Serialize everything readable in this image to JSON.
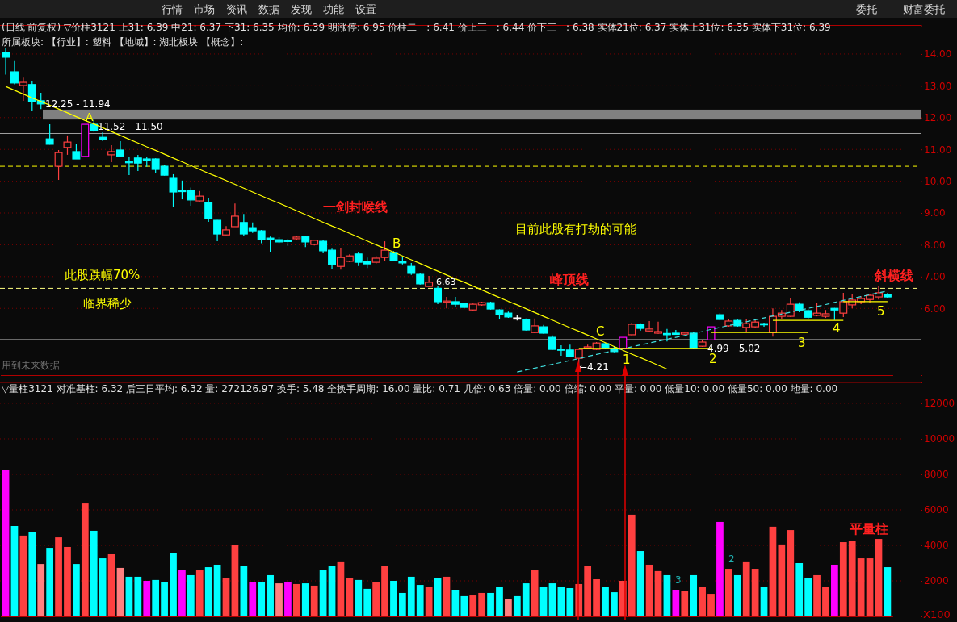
{
  "chart_data": [
    {
      "type": "other",
      "annotations": [
        "行情",
        "市场",
        "资讯",
        "数据",
        "发现",
        "功能",
        "设置",
        "委托",
        "财富委托"
      ]
    },
    {
      "type": "candlestick",
      "title": "(日线 前复权) ▽价柱3121  上31: 6.39  中21: 6.37  下31: 6.35    均价: 6.39  明涨停: 6.95  价柱二一: 6.41  价上三一: 6.44  价下三一: 6.38  实体21位: 6.37  实体上31位: 6.35  实体下31位: 6.39",
      "subtitle": "所属板块:    【行业】: 塑料  【地域】: 湖北板块    【概念】:",
      "categories": [
        null,
        null,
        null,
        null,
        null,
        null,
        null,
        null,
        null,
        null,
        null,
        null,
        null,
        null,
        null,
        null,
        null,
        null,
        null,
        null,
        null,
        null,
        null,
        null,
        null,
        null,
        null,
        null,
        null,
        null,
        null,
        null,
        null,
        null,
        null,
        null,
        null,
        null,
        null,
        null,
        null,
        null,
        null,
        null,
        null,
        null,
        null,
        null,
        null,
        null,
        null,
        null,
        null,
        null,
        null,
        null,
        null,
        null,
        null,
        null,
        null,
        null,
        null,
        null,
        null,
        null,
        null,
        null,
        null,
        null,
        null,
        null,
        null,
        null,
        null,
        null,
        null,
        null,
        null,
        null,
        null,
        null,
        null,
        null,
        null,
        null,
        null,
        null,
        null,
        null,
        null,
        null,
        null,
        null,
        null,
        null,
        null,
        null,
        null,
        null,
        null
      ],
      "ohlc": [
        [
          14.05,
          14.2,
          13.35,
          13.9
        ],
        [
          13.44,
          13.8,
          13.05,
          13.09
        ],
        [
          13.01,
          13.26,
          12.53,
          13.11
        ],
        [
          13.04,
          13.16,
          12.22,
          12.5
        ],
        [
          12.53,
          12.78,
          12.27,
          12.43
        ],
        [
          11.33,
          11.79,
          11.15,
          11.16
        ],
        [
          10.47,
          10.98,
          10.04,
          10.9
        ],
        [
          11.06,
          11.44,
          10.83,
          11.23
        ],
        [
          10.93,
          11.18,
          10.7,
          10.7
        ],
        [
          10.78,
          11.79,
          10.78,
          11.79
        ],
        [
          11.79,
          11.94,
          11.56,
          11.59
        ],
        [
          11.38,
          11.54,
          11.26,
          11.31
        ],
        [
          10.83,
          11.13,
          10.6,
          10.93
        ],
        [
          10.98,
          11.26,
          10.76,
          10.78
        ],
        [
          10.62,
          10.75,
          10.19,
          10.58
        ],
        [
          10.73,
          10.83,
          10.32,
          10.57
        ],
        [
          10.7,
          10.75,
          10.45,
          10.65
        ],
        [
          10.7,
          10.72,
          10.27,
          10.37
        ],
        [
          10.47,
          10.52,
          10.18,
          10.19
        ],
        [
          10.09,
          10.22,
          9.18,
          9.66
        ],
        [
          9.71,
          10.02,
          9.43,
          9.69
        ],
        [
          9.71,
          9.8,
          9.23,
          9.41
        ],
        [
          9.38,
          9.69,
          9.36,
          9.53
        ],
        [
          9.33,
          9.46,
          8.72,
          8.82
        ],
        [
          8.77,
          8.78,
          8.11,
          8.34
        ],
        [
          8.31,
          8.59,
          8.3,
          8.47
        ],
        [
          8.57,
          9.3,
          8.57,
          8.9
        ],
        [
          8.7,
          8.97,
          8.29,
          8.34
        ],
        [
          8.54,
          8.7,
          8.37,
          8.44
        ],
        [
          8.44,
          8.47,
          8.05,
          8.16
        ],
        [
          8.21,
          8.26,
          7.78,
          8.16
        ],
        [
          8.16,
          8.24,
          8.05,
          8.09
        ],
        [
          8.14,
          8.19,
          7.96,
          8.11
        ],
        [
          8.19,
          8.27,
          8.15,
          8.24
        ],
        [
          8.26,
          8.28,
          7.93,
          8.09
        ],
        [
          8.01,
          8.16,
          7.98,
          8.14
        ],
        [
          8.11,
          8.16,
          7.76,
          7.81
        ],
        [
          7.83,
          7.88,
          7.25,
          7.38
        ],
        [
          7.32,
          7.91,
          7.22,
          7.6
        ],
        [
          7.48,
          7.7,
          7.45,
          7.65
        ],
        [
          7.71,
          7.78,
          7.33,
          7.45
        ],
        [
          7.48,
          7.6,
          7.27,
          7.4
        ],
        [
          7.45,
          7.65,
          7.4,
          7.58
        ],
        [
          7.6,
          8.11,
          7.48,
          7.83
        ],
        [
          7.76,
          7.8,
          7.48,
          7.5
        ],
        [
          7.48,
          7.63,
          7.38,
          7.43
        ],
        [
          7.32,
          7.43,
          7.05,
          7.1
        ],
        [
          7.07,
          7.1,
          6.75,
          6.77
        ],
        [
          6.69,
          7.02,
          6.68,
          6.82
        ],
        [
          6.63,
          6.69,
          6.13,
          6.21
        ],
        [
          6.22,
          6.36,
          6.0,
          6.23
        ],
        [
          6.21,
          6.36,
          6.03,
          6.13
        ],
        [
          6.16,
          6.18,
          6.02,
          6.03
        ],
        [
          5.95,
          6.15,
          5.93,
          6.13
        ],
        [
          6.11,
          6.21,
          6.08,
          6.18
        ],
        [
          6.18,
          6.21,
          5.96,
          5.98
        ],
        [
          5.95,
          5.97,
          5.65,
          5.8
        ],
        [
          5.85,
          5.9,
          5.7,
          5.73
        ],
        [
          5.7,
          5.8,
          5.62,
          5.7
        ],
        [
          5.65,
          5.68,
          5.3,
          5.32
        ],
        [
          5.24,
          5.68,
          5.22,
          5.45
        ],
        [
          5.42,
          5.48,
          5.2,
          5.22
        ],
        [
          5.09,
          5.15,
          4.7,
          4.71
        ],
        [
          4.72,
          4.84,
          4.51,
          4.71
        ],
        [
          4.69,
          4.86,
          4.47,
          4.48
        ],
        [
          4.43,
          4.73,
          4.21,
          4.71
        ],
        [
          4.76,
          4.86,
          4.72,
          4.79
        ],
        [
          4.71,
          4.94,
          4.69,
          4.91
        ],
        [
          4.89,
          4.91,
          4.74,
          4.76
        ],
        [
          4.74,
          4.81,
          4.62,
          4.64
        ],
        [
          4.74,
          5.09,
          4.74,
          5.09
        ],
        [
          5.17,
          5.55,
          5.15,
          5.5
        ],
        [
          5.5,
          5.53,
          5.3,
          5.37
        ],
        [
          5.29,
          5.6,
          5.27,
          5.35
        ],
        [
          5.22,
          5.58,
          5.2,
          5.27
        ],
        [
          5.21,
          5.35,
          4.96,
          5.2
        ],
        [
          5.22,
          5.32,
          5.17,
          5.22
        ],
        [
          5.19,
          5.27,
          5.17,
          5.24
        ],
        [
          5.22,
          5.27,
          4.74,
          4.76
        ],
        [
          4.81,
          4.99,
          4.79,
          4.94
        ],
        [
          5.01,
          5.42,
          5.01,
          5.42
        ],
        [
          5.8,
          5.85,
          5.62,
          5.65
        ],
        [
          5.45,
          5.65,
          5.42,
          5.6
        ],
        [
          5.62,
          5.67,
          5.42,
          5.45
        ],
        [
          5.4,
          5.65,
          5.27,
          5.52
        ],
        [
          5.42,
          5.65,
          5.37,
          5.57
        ],
        [
          5.52,
          5.55,
          5.42,
          5.5
        ],
        [
          5.24,
          6.0,
          5.11,
          5.75
        ],
        [
          5.75,
          5.95,
          5.67,
          5.85
        ],
        [
          5.75,
          6.33,
          5.73,
          6.13
        ],
        [
          6.13,
          6.19,
          5.88,
          5.93
        ],
        [
          5.93,
          5.98,
          5.65,
          5.72
        ],
        [
          5.78,
          6.16,
          5.75,
          5.85
        ],
        [
          5.75,
          5.95,
          5.7,
          5.83
        ],
        [
          6.0,
          6.01,
          5.63,
          5.95
        ],
        [
          5.85,
          6.49,
          5.73,
          6.21
        ],
        [
          6.11,
          6.44,
          6.0,
          6.26
        ],
        [
          6.21,
          6.38,
          6.13,
          6.31
        ],
        [
          6.28,
          6.46,
          6.16,
          6.41
        ],
        [
          6.36,
          6.69,
          6.28,
          6.49
        ],
        [
          6.44,
          6.48,
          6.33,
          6.36
        ]
      ],
      "colors": [
        "#00ffff",
        "#00ffff",
        "#ff4040",
        "#00ffff",
        "#00ffff",
        "#00ffff",
        "#ff4040",
        "#ff4040",
        "#00ffff",
        "#ff00ff",
        "#00ffff",
        "#00ffff",
        "#ff4040",
        "#00ffff",
        "#00ffff",
        "#00ffff",
        "#00ffff",
        "#00ffff",
        "#00ffff",
        "#00ffff",
        "#00ffff",
        "#00ffff",
        "#ff4040",
        "#00ffff",
        "#00ffff",
        "#ff4040",
        "#ff4040",
        "#00ffff",
        "#00ffff",
        "#00ffff",
        "#00ffff",
        "#00ffff",
        "#00ffff",
        "#ff4040",
        "#00ffff",
        "#ff4040",
        "#00ffff",
        "#00ffff",
        "#ff4040",
        "#ff4040",
        "#00ffff",
        "#00ffff",
        "#ff4040",
        "#ff4040",
        "#00ffff",
        "#00ffff",
        "#00ffff",
        "#00ffff",
        "#ff4040",
        "#00ffff",
        "#ff4040",
        "#00ffff",
        "#00ffff",
        "#ff4040",
        "#ff4040",
        "#00ffff",
        "#00ffff",
        "#00ffff",
        "#ffffff",
        "#00ffff",
        "#ff4040",
        "#00ffff",
        "#00ffff",
        "#00ffff",
        "#00ffff",
        "#ff4040",
        "#ff4040",
        "#ff4040",
        "#00ffff",
        "#00ffff",
        "#ff00ff",
        "#ff4040",
        "#00ffff",
        "#ff4040",
        "#ff4040",
        "#00ffff",
        "#00ffff",
        "#ff4040",
        "#00ffff",
        "#ff4040",
        "#ff00ff",
        "#00ffff",
        "#ff4040",
        "#00ffff",
        "#ff4040",
        "#ff4040",
        "#00ffff",
        "#ff4040",
        "#ff4040",
        "#ff4040",
        "#00ffff",
        "#00ffff",
        "#ff4040",
        "#ff4040",
        "#00ffff",
        "#ff4040",
        "#ff4040",
        "#ff4040",
        "#ff4040",
        "#ff4040",
        "#00ffff"
      ],
      "series": [
        {
          "type": "line",
          "color": "#ffff00",
          "values": [
            12.98,
            12.86,
            12.74,
            12.62,
            12.51,
            12.39,
            12.27,
            12.15,
            12.03,
            11.91,
            11.8,
            11.68,
            11.56,
            11.44,
            11.32,
            11.2,
            11.08,
            10.97,
            10.85,
            10.73,
            10.61,
            10.49,
            10.37,
            10.25,
            10.14,
            10.02,
            9.9,
            9.78,
            9.66,
            9.54,
            9.42,
            9.31,
            9.19,
            9.07,
            8.95,
            8.83,
            8.71,
            8.59,
            8.48,
            8.36,
            8.24,
            8.12,
            8.0,
            7.88,
            7.77,
            7.65,
            7.53,
            7.41,
            7.29,
            7.17,
            7.05,
            6.93,
            6.82,
            6.7,
            6.58,
            6.46,
            6.34,
            6.22,
            6.11,
            5.99,
            5.87,
            5.75,
            5.63,
            5.51,
            5.39,
            5.28,
            5.16,
            5.04,
            4.92,
            4.8,
            4.68,
            4.56,
            4.45,
            4.33,
            4.21,
            4.09,
            null,
            null,
            null,
            null,
            null,
            null,
            null,
            null,
            null,
            null,
            null,
            null,
            null,
            null,
            null,
            null,
            null,
            null,
            null,
            null,
            null,
            null,
            null,
            null,
            null
          ]
        },
        {
          "type": "line",
          "color": "#40e0e0",
          "line_style": "dashed",
          "values": [
            null,
            null,
            null,
            null,
            null,
            null,
            null,
            null,
            null,
            null,
            null,
            null,
            null,
            null,
            null,
            null,
            null,
            null,
            null,
            null,
            null,
            null,
            null,
            null,
            null,
            null,
            null,
            null,
            null,
            null,
            null,
            null,
            null,
            null,
            null,
            null,
            null,
            null,
            null,
            null,
            null,
            null,
            null,
            null,
            null,
            null,
            null,
            null,
            null,
            null,
            null,
            null,
            null,
            null,
            null,
            null,
            null,
            null,
            4.0,
            4.06,
            4.12,
            4.18,
            4.24,
            4.3,
            4.36,
            4.42,
            4.49,
            4.55,
            4.61,
            4.67,
            4.73,
            4.79,
            4.85,
            4.91,
            4.97,
            5.03,
            5.09,
            5.15,
            5.21,
            5.27,
            5.34,
            5.4,
            5.46,
            5.52,
            5.58,
            5.64,
            5.7,
            5.76,
            5.82,
            5.88,
            5.94,
            6.0,
            6.06,
            6.12,
            6.19,
            6.25,
            6.31,
            6.37,
            6.43,
            6.49,
            6.55
          ]
        },
        {
          "type": "line",
          "color": "#ffff00",
          "values": [
            null,
            null,
            null,
            null,
            null,
            null,
            null,
            null,
            null,
            null,
            null,
            null,
            null,
            null,
            null,
            null,
            null,
            null,
            null,
            null,
            null,
            null,
            null,
            null,
            null,
            null,
            null,
            null,
            null,
            null,
            null,
            null,
            null,
            null,
            null,
            null,
            null,
            null,
            null,
            null,
            null,
            null,
            null,
            null,
            null,
            null,
            null,
            null,
            null,
            null,
            null,
            null,
            null,
            null,
            null,
            null,
            null,
            null,
            null,
            null,
            null,
            null,
            null,
            null,
            null,
            4.74,
            4.74,
            4.74,
            4.74,
            4.74,
            4.74,
            4.74,
            4.74,
            4.74,
            4.74,
            4.74,
            4.74,
            4.74,
            4.74,
            4.74,
            4.74,
            null,
            null,
            null,
            null,
            null,
            null,
            null,
            null,
            null,
            null,
            null,
            null,
            null,
            null,
            null,
            null,
            null,
            null,
            null,
            null
          ]
        },
        {
          "type": "line",
          "color": "#ffff00",
          "values": [
            null,
            null,
            null,
            null,
            null,
            null,
            null,
            null,
            null,
            null,
            null,
            null,
            null,
            null,
            null,
            null,
            null,
            null,
            null,
            null,
            null,
            null,
            null,
            null,
            null,
            null,
            null,
            null,
            null,
            null,
            null,
            null,
            null,
            null,
            null,
            null,
            null,
            null,
            null,
            null,
            null,
            null,
            null,
            null,
            null,
            null,
            null,
            null,
            null,
            null,
            null,
            null,
            null,
            null,
            null,
            null,
            null,
            null,
            null,
            null,
            null,
            null,
            null,
            null,
            null,
            null,
            null,
            null,
            null,
            null,
            null,
            null,
            null,
            null,
            null,
            null,
            null,
            null,
            null,
            null,
            5.24,
            5.24,
            5.24,
            5.24,
            5.24,
            5.24,
            5.24,
            5.24,
            5.24,
            5.24,
            5.24,
            5.24,
            null,
            null,
            null,
            null,
            null,
            null,
            null,
            null,
            null
          ]
        },
        {
          "type": "line",
          "color": "#ffff00",
          "values": [
            null,
            null,
            null,
            null,
            null,
            null,
            null,
            null,
            null,
            null,
            null,
            null,
            null,
            null,
            null,
            null,
            null,
            null,
            null,
            null,
            null,
            null,
            null,
            null,
            null,
            null,
            null,
            null,
            null,
            null,
            null,
            null,
            null,
            null,
            null,
            null,
            null,
            null,
            null,
            null,
            null,
            null,
            null,
            null,
            null,
            null,
            null,
            null,
            null,
            null,
            null,
            null,
            null,
            null,
            null,
            null,
            null,
            null,
            null,
            null,
            null,
            null,
            null,
            null,
            null,
            null,
            null,
            null,
            null,
            null,
            null,
            null,
            null,
            null,
            null,
            null,
            null,
            null,
            null,
            null,
            null,
            null,
            null,
            null,
            null,
            null,
            null,
            5.62,
            5.62,
            5.62,
            5.62,
            5.62,
            5.62,
            5.62,
            5.62,
            5.62,
            null,
            null,
            null,
            null,
            null
          ]
        },
        {
          "type": "line",
          "color": "#ffff00",
          "values": [
            null,
            null,
            null,
            null,
            null,
            null,
            null,
            null,
            null,
            null,
            null,
            null,
            null,
            null,
            null,
            null,
            null,
            null,
            null,
            null,
            null,
            null,
            null,
            null,
            null,
            null,
            null,
            null,
            null,
            null,
            null,
            null,
            null,
            null,
            null,
            null,
            null,
            null,
            null,
            null,
            null,
            null,
            null,
            null,
            null,
            null,
            null,
            null,
            null,
            null,
            null,
            null,
            null,
            null,
            null,
            null,
            null,
            null,
            null,
            null,
            null,
            null,
            null,
            null,
            null,
            null,
            null,
            null,
            null,
            null,
            null,
            null,
            null,
            null,
            null,
            null,
            null,
            null,
            null,
            null,
            null,
            null,
            null,
            null,
            null,
            null,
            null,
            null,
            null,
            null,
            null,
            null,
            null,
            null,
            null,
            6.21,
            6.21,
            6.21,
            6.21,
            6.21,
            6.21
          ]
        }
      ],
      "bands": [
        {
          "axis": "y",
          "from": 11.94,
          "to": 12.25,
          "color": "#808080"
        }
      ],
      "ref_lines": [
        {
          "axis": "y",
          "value": 10.47,
          "color": "#ffff00",
          "line_style": "dashed"
        },
        {
          "axis": "y",
          "value": 11.5,
          "color": "#a0a0a0"
        },
        {
          "axis": "y",
          "value": 6.63,
          "color": "#ffff80",
          "line_style": "dashed"
        },
        {
          "axis": "y",
          "value": 5.02,
          "color": "#a0a0a0"
        }
      ],
      "ylim": [
        3.9,
        14.9
      ],
      "yticks": [
        {
          "value": 6,
          "label": "6.00"
        },
        {
          "value": 7,
          "label": "7.00"
        },
        {
          "value": 8,
          "label": "8.00"
        },
        {
          "value": 9,
          "label": "9.00"
        },
        {
          "value": 10,
          "label": "10.00"
        },
        {
          "value": 11,
          "label": "11.00"
        },
        {
          "value": 12,
          "label": "12.00"
        },
        {
          "value": 13,
          "label": "13.00"
        },
        {
          "value": 14,
          "label": "14.00"
        }
      ],
      "grid": "y",
      "tick_labels": "y",
      "annotations": [
        "12.25 - 11.94",
        "A",
        "11.52 - 11.50",
        "一剑封喉线",
        "目前此股有打劫的可能",
        "B",
        "6.63",
        "峰顶线",
        "斜横线",
        "此股跌幅70%",
        "临界稀少",
        "C",
        "←4.21",
        "1",
        "2",
        "3",
        "4",
        "5",
        "4.99 - 5.02",
        "用到未来数据"
      ]
    },
    {
      "type": "bar",
      "title": "▽量柱3121  对准基柱: 6.32  后三日平均: 6.32  量: 272126.97  换手: 5.48  全换手周期: 16.00  量比: 0.71  几倍: 0.63  倍量: 0.00  倍缩: 0.00  平量: 0.00  低量10: 0.00  低量50: 0.00  地量: 0.00",
      "categories": [
        null,
        null,
        null,
        null,
        null,
        null,
        null,
        null,
        null,
        null,
        null,
        null,
        null,
        null,
        null,
        null,
        null,
        null,
        null,
        null,
        null,
        null,
        null,
        null,
        null,
        null,
        null,
        null,
        null,
        null,
        null,
        null,
        null,
        null,
        null,
        null,
        null,
        null,
        null,
        null,
        null,
        null,
        null,
        null,
        null,
        null,
        null,
        null,
        null,
        null,
        null,
        null,
        null,
        null,
        null,
        null,
        null,
        null,
        null,
        null,
        null,
        null,
        null,
        null,
        null,
        null,
        null,
        null,
        null,
        null,
        null,
        null,
        null,
        null,
        null,
        null,
        null,
        null,
        null,
        null,
        null,
        null,
        null,
        null,
        null,
        null,
        null,
        null,
        null,
        null,
        null,
        null,
        null,
        null,
        null,
        null,
        null,
        null,
        null,
        null,
        null
      ],
      "values": [
        8270,
        5090,
        4550,
        4770,
        2950,
        3860,
        4450,
        3910,
        2950,
        6360,
        4820,
        3270,
        3500,
        2730,
        2230,
        2230,
        2000,
        2050,
        1950,
        3590,
        2590,
        2320,
        2590,
        2770,
        2910,
        2140,
        4000,
        2820,
        1950,
        1950,
        2320,
        1860,
        1910,
        1820,
        1860,
        1730,
        2590,
        2820,
        3050,
        2140,
        2050,
        1550,
        1910,
        2820,
        2000,
        1320,
        2230,
        1770,
        1680,
        2180,
        2230,
        1500,
        1140,
        1180,
        1320,
        1320,
        1680,
        1000,
        1140,
        1860,
        2590,
        1680,
        1860,
        1680,
        1590,
        1820,
        2860,
        2090,
        1680,
        1360,
        2000,
        5730,
        3680,
        2910,
        2550,
        2320,
        1500,
        1410,
        2320,
        1640,
        1270,
        5320,
        2680,
        2320,
        3050,
        2680,
        1640,
        5050,
        4050,
        4860,
        3000,
        2180,
        2320,
        1680,
        2910,
        4180,
        4270,
        3270,
        3270,
        4360,
        2770
      ],
      "colors": [
        "#ff00ff",
        "#00ffff",
        "#ff4040",
        "#00ffff",
        "#ff8080",
        "#00ffff",
        "#ff4040",
        "#ff4040",
        "#00ffff",
        "#ff4040",
        "#00ffff",
        "#00ffff",
        "#ff4040",
        "#ff8080",
        "#00ffff",
        "#00ffff",
        "#ff00ff",
        "#00ffff",
        "#00ffff",
        "#00ffff",
        "#ff00ff",
        "#00ffff",
        "#ff4040",
        "#00ffff",
        "#00ffff",
        "#ff4040",
        "#ff4040",
        "#00ffff",
        "#ff00ff",
        "#00ffff",
        "#00ffff",
        "#ff8080",
        "#ff00ff",
        "#ff4040",
        "#00ffff",
        "#ff4040",
        "#00ffff",
        "#00ffff",
        "#ff4040",
        "#ff4040",
        "#00ffff",
        "#00ffff",
        "#ff4040",
        "#ff4040",
        "#00ffff",
        "#00ffff",
        "#00ffff",
        "#00ffff",
        "#ff4040",
        "#00ffff",
        "#ff4040",
        "#00ffff",
        "#00ffff",
        "#ff4040",
        "#ff4040",
        "#00ffff",
        "#00ffff",
        "#ff8080",
        "#00ffff",
        "#00ffff",
        "#ff4040",
        "#00ffff",
        "#00ffff",
        "#00ffff",
        "#00ffff",
        "#ff4040",
        "#ff4040",
        "#ff4040",
        "#00ffff",
        "#00ffff",
        "#ff4040",
        "#ff4040",
        "#00ffff",
        "#ff4040",
        "#ff4040",
        "#00ffff",
        "#ff00ff",
        "#ff4040",
        "#00ffff",
        "#ff4040",
        "#ff4040",
        "#ff00ff",
        "#ff4040",
        "#00ffff",
        "#ff4040",
        "#ff4040",
        "#00ffff",
        "#ff4040",
        "#ff4040",
        "#ff4040",
        "#00ffff",
        "#00ffff",
        "#ff4040",
        "#ff4040",
        "#ff00ff",
        "#ff4040",
        "#ff4040",
        "#ff4040",
        "#ff4040",
        "#ff4040",
        "#00ffff"
      ],
      "ylim": [
        0,
        13180
      ],
      "yticks": [
        2000,
        4000,
        6000,
        8000,
        10000,
        12000
      ],
      "grid": "y",
      "tick_labels": "y",
      "annotations": [
        "平量柱",
        "2",
        "3",
        "X100"
      ]
    }
  ]
}
